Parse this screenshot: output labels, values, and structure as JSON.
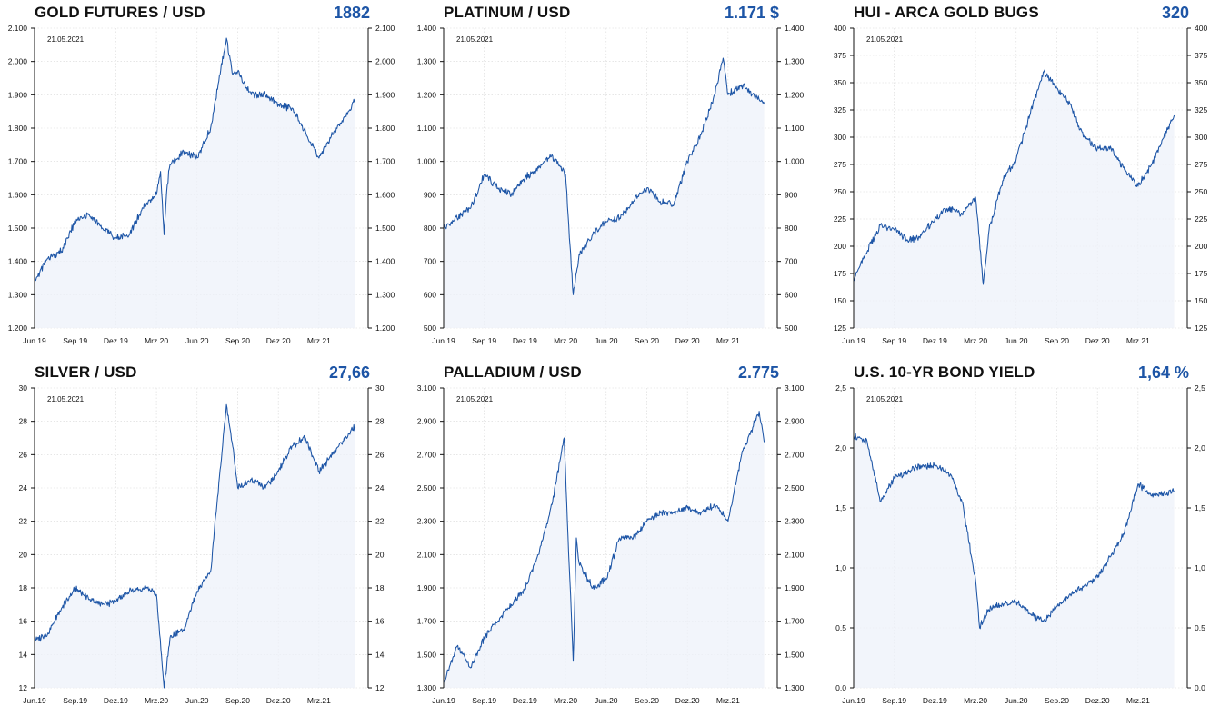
{
  "charts": [
    {
      "title": "GOLD FUTURES / USD",
      "value": "1882",
      "value_color": "#1d55a6"
    },
    {
      "title": "PLATINUM / USD",
      "value": "1.171 $",
      "value_color": "#1d55a6"
    },
    {
      "title": "HUI - ARCA GOLD BUGS",
      "value": "320",
      "value_color": "#1d55a6"
    },
    {
      "title": "SILVER / USD",
      "value": "27,66",
      "value_color": "#1d55a6"
    },
    {
      "title": "PALLADIUM / USD",
      "value": "2.775",
      "value_color": "#1d55a6"
    },
    {
      "title": "U.S. 10-YR BOND YIELD",
      "value": "1,64 %",
      "value_color": "#1d55a6"
    }
  ],
  "chart_data": [
    {
      "type": "line",
      "title": "GOLD FUTURES / USD",
      "date_label": "21.05.2021",
      "line_color": "#1d55a6",
      "x_ticks": [
        "Jun.19",
        "Sep.19",
        "Dez.19",
        "Mrz.20",
        "Jun.20",
        "Sep.20",
        "Dez.20",
        "Mrz.21"
      ],
      "y_ticks": [
        "1.200",
        "1.300",
        "1.400",
        "1.500",
        "1.600",
        "1.700",
        "1.800",
        "1.900",
        "2.000",
        "2.100"
      ],
      "ylim": [
        1200,
        2100
      ],
      "x": [
        "2019-06",
        "2019-07",
        "2019-08",
        "2019-09",
        "2019-10",
        "2019-11",
        "2019-12",
        "2020-01",
        "2020-02",
        "2020-03",
        "2020-03-10",
        "2020-03-18",
        "2020-03-25",
        "2020-04",
        "2020-05",
        "2020-06",
        "2020-07",
        "2020-08-06",
        "2020-08-20",
        "2020-09",
        "2020-10",
        "2020-11",
        "2020-12",
        "2021-01",
        "2021-02",
        "2021-03",
        "2021-04",
        "2021-05-21"
      ],
      "series": [
        {
          "values": [
            1340,
            1410,
            1430,
            1520,
            1540,
            1500,
            1470,
            1480,
            1560,
            1600,
            1670,
            1480,
            1630,
            1690,
            1730,
            1710,
            1800,
            2070,
            1960,
            1970,
            1900,
            1900,
            1870,
            1860,
            1790,
            1710,
            1780,
            1882
          ]
        }
      ]
    },
    {
      "type": "line",
      "title": "PLATINUM / USD",
      "date_label": "21.05.2021",
      "line_color": "#1d55a6",
      "x_ticks": [
        "Jun.19",
        "Sep.19",
        "Dez.19",
        "Mrz.20",
        "Jun.20",
        "Sep.20",
        "Dez.20",
        "Mrz.21"
      ],
      "y_ticks": [
        "500",
        "600",
        "700",
        "800",
        "900",
        "1.000",
        "1.100",
        "1.200",
        "1.300",
        "1.400"
      ],
      "ylim": [
        500,
        1400
      ],
      "x": [
        "2019-06",
        "2019-07",
        "2019-08",
        "2019-09",
        "2019-10",
        "2019-11",
        "2019-12",
        "2020-01",
        "2020-02",
        "2020-03",
        "2020-03-18",
        "2020-04",
        "2020-05",
        "2020-06",
        "2020-07",
        "2020-08",
        "2020-09",
        "2020-10",
        "2020-11",
        "2020-12",
        "2021-01",
        "2021-02",
        "2021-02-20",
        "2021-03",
        "2021-04",
        "2021-05-21"
      ],
      "series": [
        {
          "values": [
            800,
            830,
            860,
            960,
            920,
            900,
            950,
            980,
            1020,
            960,
            600,
            720,
            780,
            820,
            830,
            880,
            920,
            880,
            870,
            1000,
            1080,
            1200,
            1310,
            1200,
            1230,
            1171
          ]
        }
      ]
    },
    {
      "type": "line",
      "title": "HUI - ARCA GOLD BUGS",
      "date_label": "21.05.2021",
      "line_color": "#1d55a6",
      "x_ticks": [
        "Jun.19",
        "Sep.19",
        "Dez.19",
        "Mrz.20",
        "Jun.20",
        "Sep.20",
        "Dez.20",
        "Mrz.21"
      ],
      "y_ticks": [
        "125",
        "150",
        "175",
        "200",
        "225",
        "250",
        "275",
        "300",
        "325",
        "350",
        "375",
        "400"
      ],
      "ylim": [
        125,
        400
      ],
      "x": [
        "2019-06",
        "2019-07",
        "2019-08",
        "2019-09",
        "2019-10",
        "2019-11",
        "2019-12",
        "2020-01",
        "2020-02",
        "2020-03",
        "2020-03-18",
        "2020-04",
        "2020-05",
        "2020-06",
        "2020-07",
        "2020-08",
        "2020-09",
        "2020-10",
        "2020-11",
        "2020-12",
        "2021-01",
        "2021-02",
        "2021-03",
        "2021-04",
        "2021-05-21"
      ],
      "series": [
        {
          "values": [
            170,
            195,
            220,
            215,
            205,
            210,
            225,
            235,
            230,
            245,
            165,
            215,
            260,
            280,
            320,
            360,
            345,
            330,
            300,
            290,
            290,
            270,
            255,
            275,
            320
          ]
        }
      ]
    },
    {
      "type": "line",
      "title": "SILVER / USD",
      "date_label": "21.05.2021",
      "line_color": "#1d55a6",
      "x_ticks": [
        "Jun.19",
        "Sep.19",
        "Dez.19",
        "Mrz.20",
        "Jun.20",
        "Sep.20",
        "Dez.20",
        "Mrz.21"
      ],
      "y_ticks": [
        "12",
        "14",
        "16",
        "18",
        "20",
        "22",
        "24",
        "26",
        "28",
        "30"
      ],
      "ylim": [
        12,
        30
      ],
      "x": [
        "2019-06",
        "2019-07",
        "2019-08",
        "2019-09",
        "2019-10",
        "2019-11",
        "2019-12",
        "2020-01",
        "2020-02",
        "2020-03",
        "2020-03-18",
        "2020-04",
        "2020-05",
        "2020-06",
        "2020-07",
        "2020-08-06",
        "2020-08-20",
        "2020-09",
        "2020-10",
        "2020-11",
        "2020-12",
        "2021-01",
        "2021-02",
        "2021-03",
        "2021-04",
        "2021-05-21"
      ],
      "series": [
        {
          "values": [
            14.8,
            15.3,
            16.8,
            18.0,
            17.3,
            17.0,
            17.2,
            17.8,
            18.0,
            17.6,
            12.0,
            15.0,
            15.5,
            17.8,
            19.0,
            29.0,
            26.5,
            24.0,
            24.5,
            24.0,
            25.0,
            26.5,
            27.0,
            25.0,
            26.0,
            27.66
          ]
        }
      ]
    },
    {
      "type": "line",
      "title": "PALLADIUM / USD",
      "date_label": "21.05.2021",
      "line_color": "#1d55a6",
      "x_ticks": [
        "Jun.19",
        "Sep.19",
        "Dez.19",
        "Mrz.20",
        "Jun.20",
        "Sep.20",
        "Dez.20",
        "Mrz.21"
      ],
      "y_ticks": [
        "1.300",
        "1.500",
        "1.700",
        "1.900",
        "2.100",
        "2.300",
        "2.500",
        "2.700",
        "2.900",
        "3.100"
      ],
      "ylim": [
        1300,
        3100
      ],
      "x": [
        "2019-06",
        "2019-07",
        "2019-08",
        "2019-09",
        "2019-10",
        "2019-11",
        "2019-12",
        "2020-01",
        "2020-02",
        "2020-02-28",
        "2020-03-05",
        "2020-03-18",
        "2020-03-25",
        "2020-04",
        "2020-05",
        "2020-06",
        "2020-07",
        "2020-08",
        "2020-09",
        "2020-10",
        "2020-11",
        "2020-12",
        "2021-01",
        "2021-02",
        "2021-03",
        "2021-04",
        "2021-05-10",
        "2021-05-21"
      ],
      "series": [
        {
          "values": [
            1330,
            1550,
            1420,
            1600,
            1700,
            1800,
            1900,
            2100,
            2400,
            2800,
            2300,
            1460,
            2200,
            2050,
            1900,
            1950,
            2200,
            2200,
            2300,
            2350,
            2350,
            2380,
            2350,
            2400,
            2300,
            2700,
            2960,
            2775
          ]
        }
      ]
    },
    {
      "type": "line",
      "title": "U.S. 10-YR BOND YIELD",
      "date_label": "21.05.2021",
      "line_color": "#1d55a6",
      "x_ticks": [
        "Jun.19",
        "Sep.19",
        "Dez.19",
        "Mrz.20",
        "Jun.20",
        "Sep.20",
        "Dez.20",
        "Mrz.21"
      ],
      "y_ticks": [
        "0,0",
        "0,5",
        "1,0",
        "1,5",
        "2,0",
        "2,5"
      ],
      "ylim": [
        0.0,
        2.5
      ],
      "x": [
        "2019-06",
        "2019-07",
        "2019-08",
        "2019-09",
        "2019-10",
        "2019-11",
        "2019-12",
        "2020-01",
        "2020-02",
        "2020-03",
        "2020-03-10",
        "2020-04",
        "2020-05",
        "2020-06",
        "2020-07",
        "2020-08",
        "2020-09",
        "2020-10",
        "2020-11",
        "2020-12",
        "2021-01",
        "2021-02",
        "2021-03",
        "2021-04",
        "2021-05-21"
      ],
      "series": [
        {
          "values": [
            2.1,
            2.05,
            1.55,
            1.75,
            1.8,
            1.85,
            1.85,
            1.8,
            1.55,
            0.9,
            0.5,
            0.65,
            0.7,
            0.72,
            0.62,
            0.55,
            0.68,
            0.78,
            0.85,
            0.92,
            1.1,
            1.3,
            1.7,
            1.6,
            1.64
          ]
        }
      ]
    }
  ]
}
